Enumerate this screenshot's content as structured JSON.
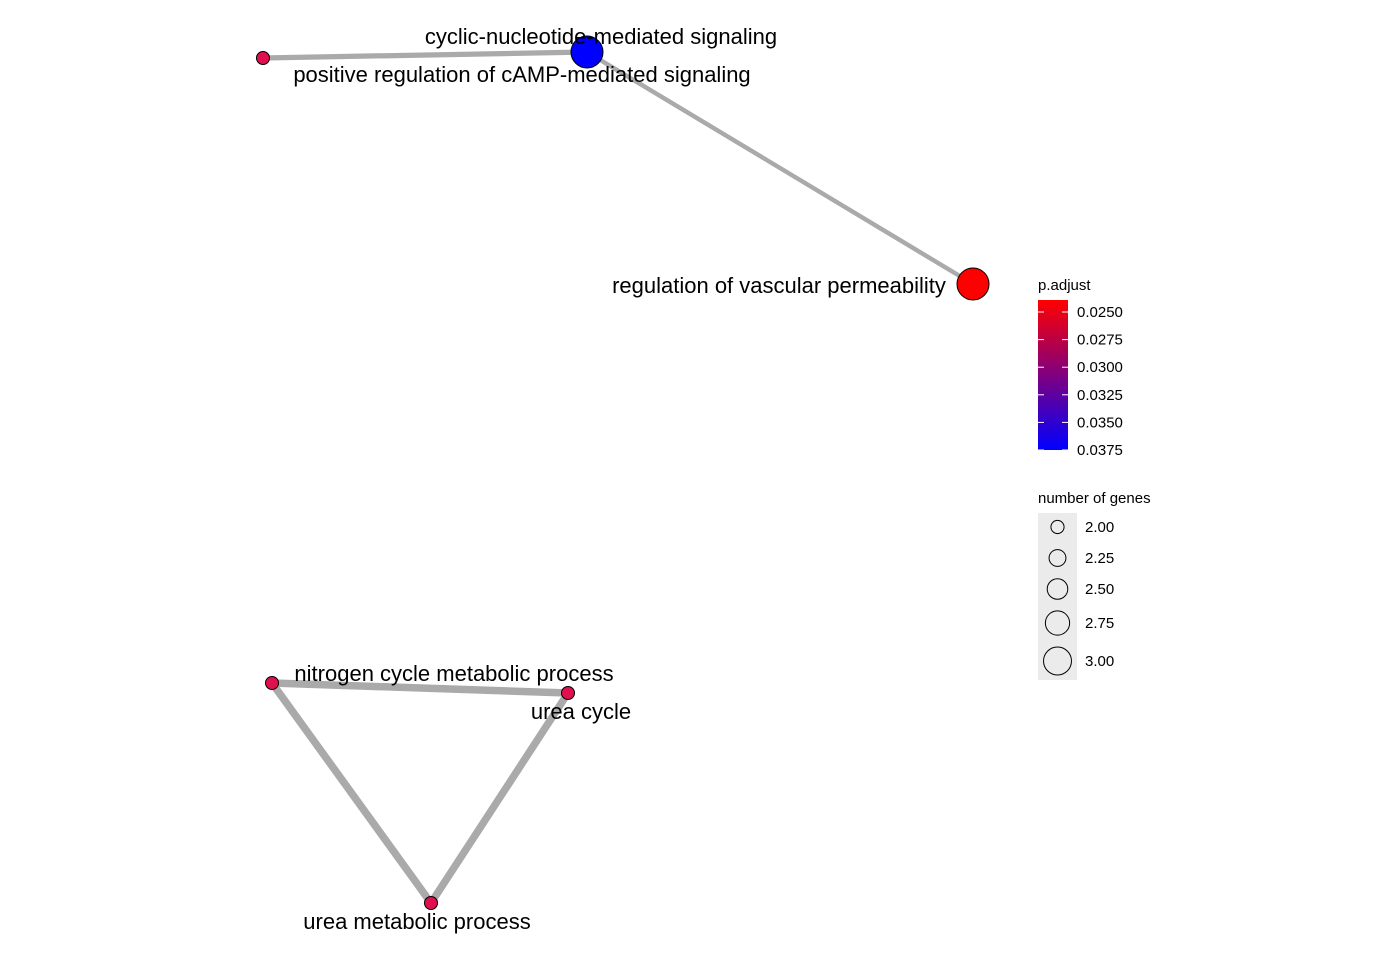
{
  "colors": {
    "edge": "#aaaaaa",
    "low_padj": "#ff0000",
    "high_padj": "#0000ff",
    "node_stroke": "#000000",
    "legend_key_bg": "#ebebeb"
  },
  "nodes": [
    {
      "id": "cyclic",
      "label": "cyclic-nucleotide-mediated signaling",
      "genes": 3,
      "p_adjust": 0.0375,
      "color": "#0000ff"
    },
    {
      "id": "camp",
      "label": "positive regulation of cAMP-mediated signaling",
      "genes": 2,
      "p_adjust": 0.0288,
      "color": "#e0104e"
    },
    {
      "id": "vascular",
      "label": "regulation of vascular permeability",
      "genes": 3,
      "p_adjust": 0.025,
      "color": "#ff0000"
    },
    {
      "id": "nitrogen",
      "label": "nitrogen cycle metabolic process",
      "genes": 2,
      "p_adjust": 0.0288,
      "color": "#e0104e"
    },
    {
      "id": "ureacycle",
      "label": "urea cycle",
      "genes": 2,
      "p_adjust": 0.0288,
      "color": "#e0104e"
    },
    {
      "id": "ureamet",
      "label": "urea metabolic process",
      "genes": 2,
      "p_adjust": 0.0288,
      "color": "#e0104e"
    }
  ],
  "edges": [
    {
      "source": "camp",
      "target": "cyclic",
      "weight": 0.5
    },
    {
      "source": "cyclic",
      "target": "vascular",
      "weight": 0.33
    },
    {
      "source": "nitrogen",
      "target": "ureacycle",
      "weight": 1.0
    },
    {
      "source": "nitrogen",
      "target": "ureamet",
      "weight": 1.0
    },
    {
      "source": "ureacycle",
      "target": "ureamet",
      "weight": 1.0
    }
  ],
  "legend": {
    "color_title": "p.adjust",
    "color_ticks": [
      "0.0250",
      "0.0275",
      "0.0300",
      "0.0325",
      "0.0350",
      "0.0375"
    ],
    "size_title": "number of genes",
    "size_ticks": [
      "2.00",
      "2.25",
      "2.50",
      "2.75",
      "3.00"
    ]
  }
}
